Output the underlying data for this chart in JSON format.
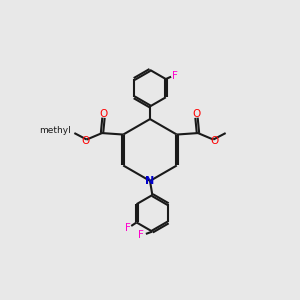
{
  "bg_color": "#e8e8e8",
  "bond_color": "#1a1a1a",
  "o_color": "#ff0000",
  "n_color": "#0000cc",
  "f_color": "#ff00cc",
  "lw": 1.5,
  "dbo": 0.035,
  "xlim": [
    0,
    10
  ],
  "ylim": [
    0,
    10
  ],
  "figsize": [
    3.0,
    3.0
  ],
  "dpi": 100
}
